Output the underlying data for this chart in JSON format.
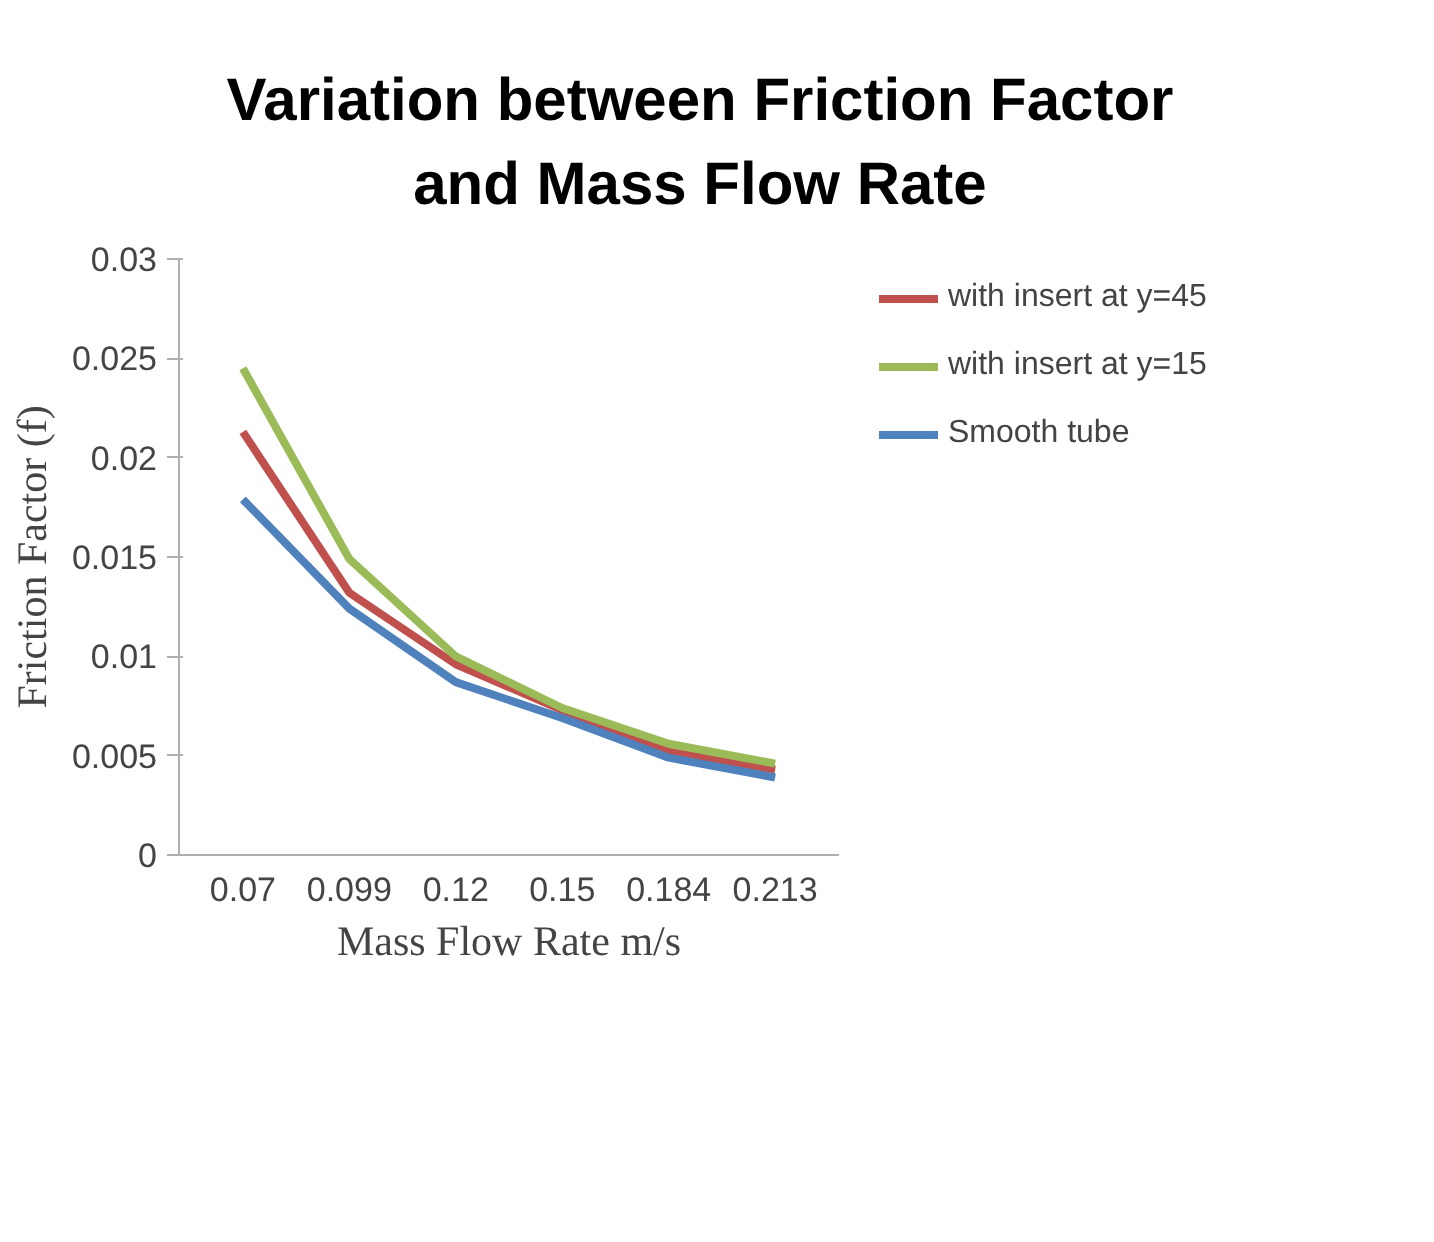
{
  "chart_data": {
    "type": "line",
    "title": "Variation between Friction Factor and Mass Flow Rate",
    "xlabel": "Mass Flow Rate m/s",
    "ylabel": "Friction Factor (f)",
    "categories": [
      "0.07",
      "0.099",
      "0.12",
      "0.15",
      "0.184",
      "0.213"
    ],
    "series": [
      {
        "name": "with insert at y=45",
        "color": "#c0504d",
        "values": [
          0.0213,
          0.0132,
          0.0096,
          0.0073,
          0.0052,
          0.0043
        ]
      },
      {
        "name": "with insert at y=15",
        "color": "#9bbb59",
        "values": [
          0.0245,
          0.0149,
          0.01,
          0.0074,
          0.0056,
          0.0046
        ]
      },
      {
        "name": "Smooth tube",
        "color": "#4f81bd",
        "values": [
          0.0179,
          0.0124,
          0.0087,
          0.0069,
          0.0049,
          0.0039
        ]
      }
    ],
    "ylim": [
      0,
      0.03
    ],
    "yticks": [
      0,
      0.005,
      0.01,
      0.015,
      0.02,
      0.025,
      0.03
    ],
    "grid": false,
    "legend": "right",
    "marker": "none",
    "line_style": "solid"
  }
}
